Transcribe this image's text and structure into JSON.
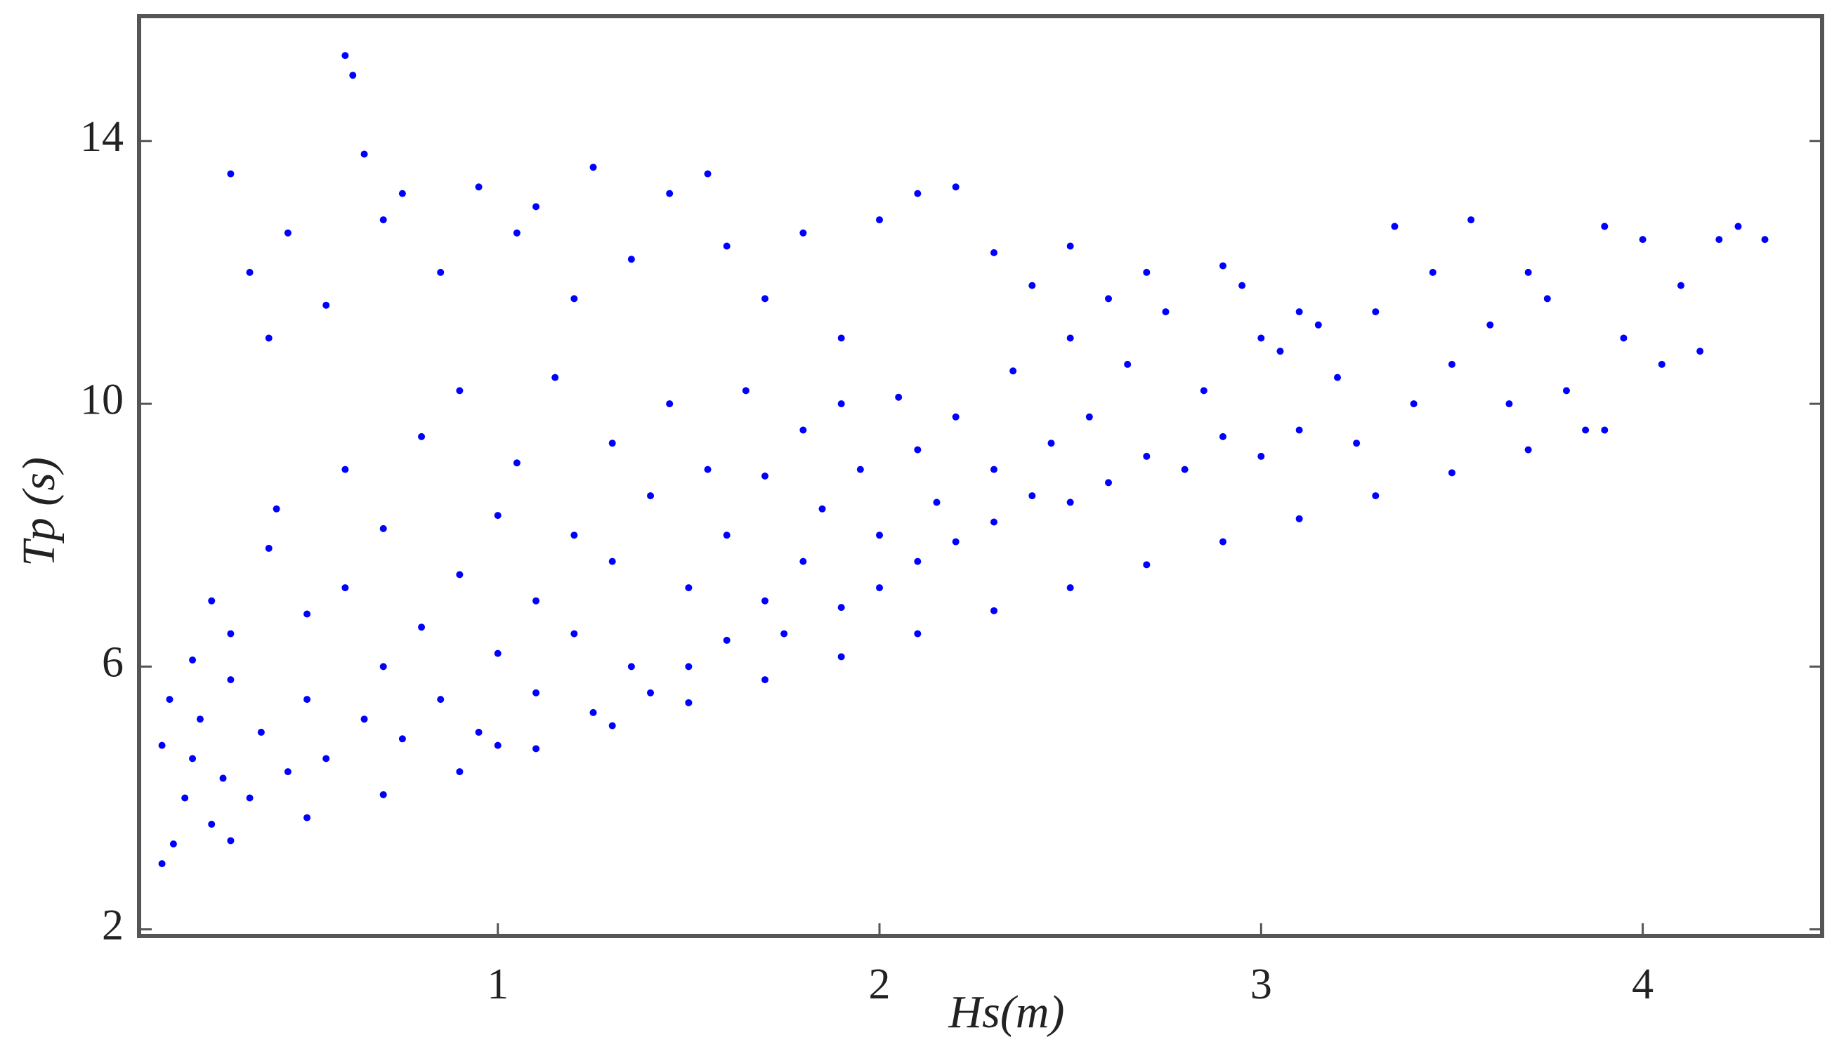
{
  "chart_data": {
    "type": "scatter",
    "x_label": "Hs(m)",
    "y_label": "Tp (s)",
    "color": "#0000ff",
    "xlim": [
      0.06,
      4.47
    ],
    "ylim": [
      1.9,
      15.9
    ],
    "xticks": [
      1,
      2,
      3,
      4
    ],
    "yticks": [
      2,
      6,
      10,
      14
    ],
    "x": [
      0.15,
      0.18,
      0.2,
      0.22,
      0.25,
      0.28,
      0.3,
      0.12,
      0.14,
      0.2,
      0.25,
      0.3,
      0.35,
      0.38,
      0.4,
      0.42,
      0.45,
      0.5,
      0.5,
      0.55,
      0.6,
      0.6,
      0.65,
      0.7,
      0.7,
      0.75,
      0.8,
      0.8,
      0.85,
      0.9,
      0.9,
      0.95,
      1.0,
      1.0,
      1.0,
      1.05,
      1.1,
      1.1,
      1.15,
      1.2,
      1.2,
      1.25,
      1.3,
      1.3,
      1.35,
      1.4,
      1.4,
      1.45,
      1.5,
      1.5,
      1.55,
      1.6,
      1.6,
      1.65,
      1.7,
      1.7,
      1.75,
      1.8,
      1.8,
      1.85,
      1.9,
      1.9,
      1.95,
      2.0,
      2.0,
      2.05,
      2.1,
      2.1,
      2.15,
      2.2,
      2.2,
      2.3,
      2.3,
      2.35,
      2.4,
      2.45,
      2.5,
      2.5,
      2.55,
      2.6,
      2.65,
      2.7,
      2.75,
      2.8,
      2.85,
      2.9,
      2.95,
      3.0,
      3.05,
      3.1,
      3.15,
      3.2,
      3.25,
      3.3,
      3.35,
      3.4,
      3.45,
      3.5,
      3.55,
      3.6,
      3.65,
      3.7,
      3.75,
      3.8,
      3.85,
      3.9,
      3.95,
      4.0,
      4.05,
      4.1,
      4.15,
      4.2,
      4.25,
      4.32,
      0.3,
      0.35,
      0.4,
      0.45,
      0.55,
      0.6,
      0.62,
      0.65,
      0.7,
      0.75,
      0.85,
      0.95,
      1.05,
      1.1,
      1.2,
      1.25,
      1.35,
      1.45,
      1.55,
      1.6,
      1.7,
      1.8,
      1.9,
      2.0,
      2.1,
      2.2,
      2.3,
      2.4,
      2.5,
      2.6,
      2.7,
      2.9,
      3.0,
      3.1,
      0.12,
      0.3,
      0.5,
      0.7,
      0.9,
      1.1,
      1.3,
      1.5,
      1.7,
      1.9,
      2.1,
      2.3,
      2.5,
      2.7,
      2.9,
      3.1,
      3.3,
      3.5,
      3.7,
      3.9
    ],
    "y": [
      3.3,
      4.0,
      4.6,
      5.2,
      3.6,
      4.3,
      5.8,
      4.8,
      5.5,
      6.1,
      7.0,
      6.5,
      4.0,
      5.0,
      7.8,
      8.4,
      4.4,
      5.5,
      6.8,
      4.6,
      7.2,
      9.0,
      5.2,
      6.0,
      8.1,
      4.9,
      6.6,
      9.5,
      5.5,
      7.4,
      10.2,
      5.0,
      6.2,
      8.3,
      4.8,
      9.1,
      5.6,
      7.0,
      10.4,
      6.5,
      8.0,
      5.3,
      7.6,
      9.4,
      6.0,
      8.6,
      5.6,
      10.0,
      7.2,
      6.0,
      9.0,
      8.0,
      6.4,
      10.2,
      7.0,
      8.9,
      6.5,
      9.6,
      7.6,
      8.4,
      6.9,
      10.0,
      9.0,
      7.2,
      8.0,
      10.1,
      7.6,
      9.3,
      8.5,
      7.9,
      9.8,
      8.2,
      9.0,
      10.5,
      8.6,
      9.4,
      8.5,
      11.0,
      9.8,
      8.8,
      10.6,
      9.2,
      11.4,
      9.0,
      10.2,
      9.5,
      11.8,
      9.2,
      10.8,
      9.6,
      11.2,
      10.4,
      9.4,
      11.4,
      12.7,
      10.0,
      12.0,
      10.6,
      12.8,
      11.2,
      10.0,
      12.0,
      11.6,
      10.2,
      9.6,
      12.7,
      11.0,
      12.5,
      10.6,
      11.8,
      10.8,
      12.5,
      12.7,
      12.5,
      13.5,
      12.0,
      11.0,
      12.6,
      11.5,
      15.3,
      15.0,
      13.8,
      12.8,
      13.2,
      12.0,
      13.3,
      12.6,
      13.0,
      11.6,
      13.6,
      12.2,
      13.2,
      13.5,
      12.4,
      11.6,
      12.6,
      11.0,
      12.8,
      13.2,
      13.3,
      12.3,
      11.8,
      12.4,
      11.6,
      12.0,
      12.1,
      11.0,
      11.4,
      3.0,
      3.35,
      3.7,
      4.05,
      4.4,
      4.75,
      5.1,
      5.45,
      5.8,
      6.15,
      6.5,
      6.85,
      7.2,
      7.55,
      7.9,
      8.25,
      8.6,
      8.95,
      9.3,
      9.6
    ]
  }
}
